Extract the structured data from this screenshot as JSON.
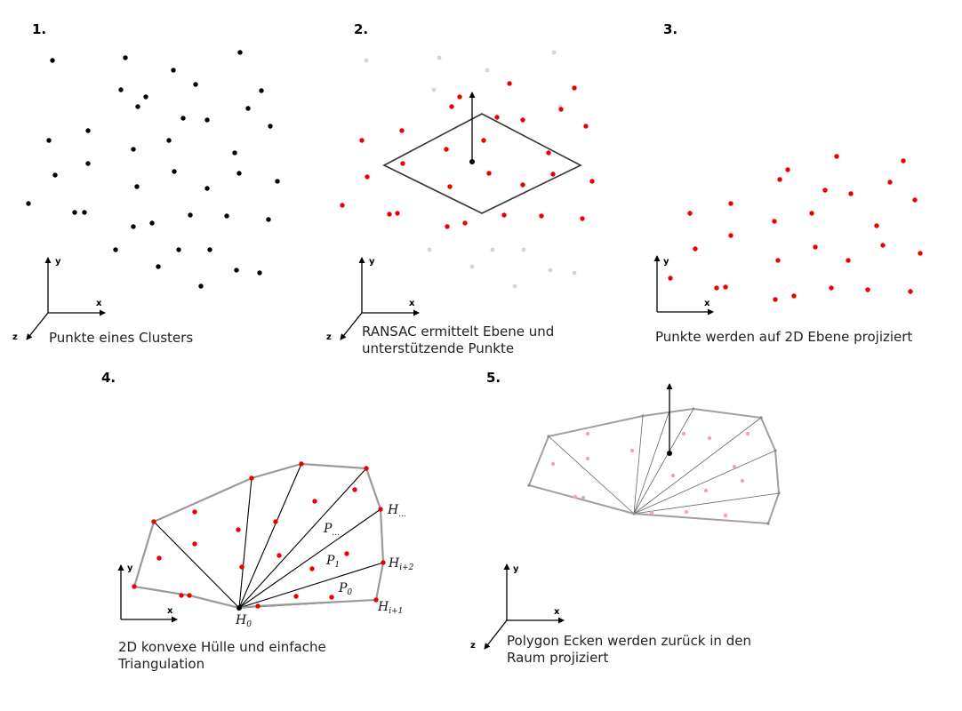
{
  "steps": [
    {
      "number": "1.",
      "caption": [
        "Punkte eines Clusters"
      ]
    },
    {
      "number": "2.",
      "caption": [
        "RANSAC ermittelt Ebene und",
        "unterstützende Punkte"
      ]
    },
    {
      "number": "3.",
      "caption": [
        "Punkte werden auf 2D Ebene projiziert"
      ]
    },
    {
      "number": "4.",
      "caption": [
        "2D konvexe Hülle und einfache",
        "Triangulation"
      ]
    },
    {
      "number": "5.",
      "caption": [
        "Polygon Ecken werden zurück in den",
        "Raum projiziert"
      ]
    }
  ],
  "axes": {
    "x": "x",
    "y": "y",
    "z": "z"
  },
  "labels": {
    "h_dots": {
      "base": "H",
      "sub": "..."
    },
    "h_i2": {
      "base": "H",
      "sub": "i+2"
    },
    "h_i1": {
      "base": "H",
      "sub": "i+1"
    },
    "h_0": {
      "base": "H",
      "sub": "0"
    },
    "p_dots": {
      "base": "P",
      "sub": "..."
    },
    "p_1": {
      "base": "P",
      "sub": "1"
    },
    "p_0": {
      "base": "P",
      "sub": "0"
    }
  },
  "colors": {
    "point_black": "#000000",
    "point_red": "#ee0000",
    "point_gray": "#d4d4d4",
    "point_pink": "#f4a6a6",
    "hull": "#9a9a9a",
    "plane": "#333333",
    "tri_line": "#000000",
    "tri_line_light": "#666666"
  },
  "icons": {
    "axis_arrow": "arrow-icon",
    "normal_vector": "up-arrow-icon"
  }
}
